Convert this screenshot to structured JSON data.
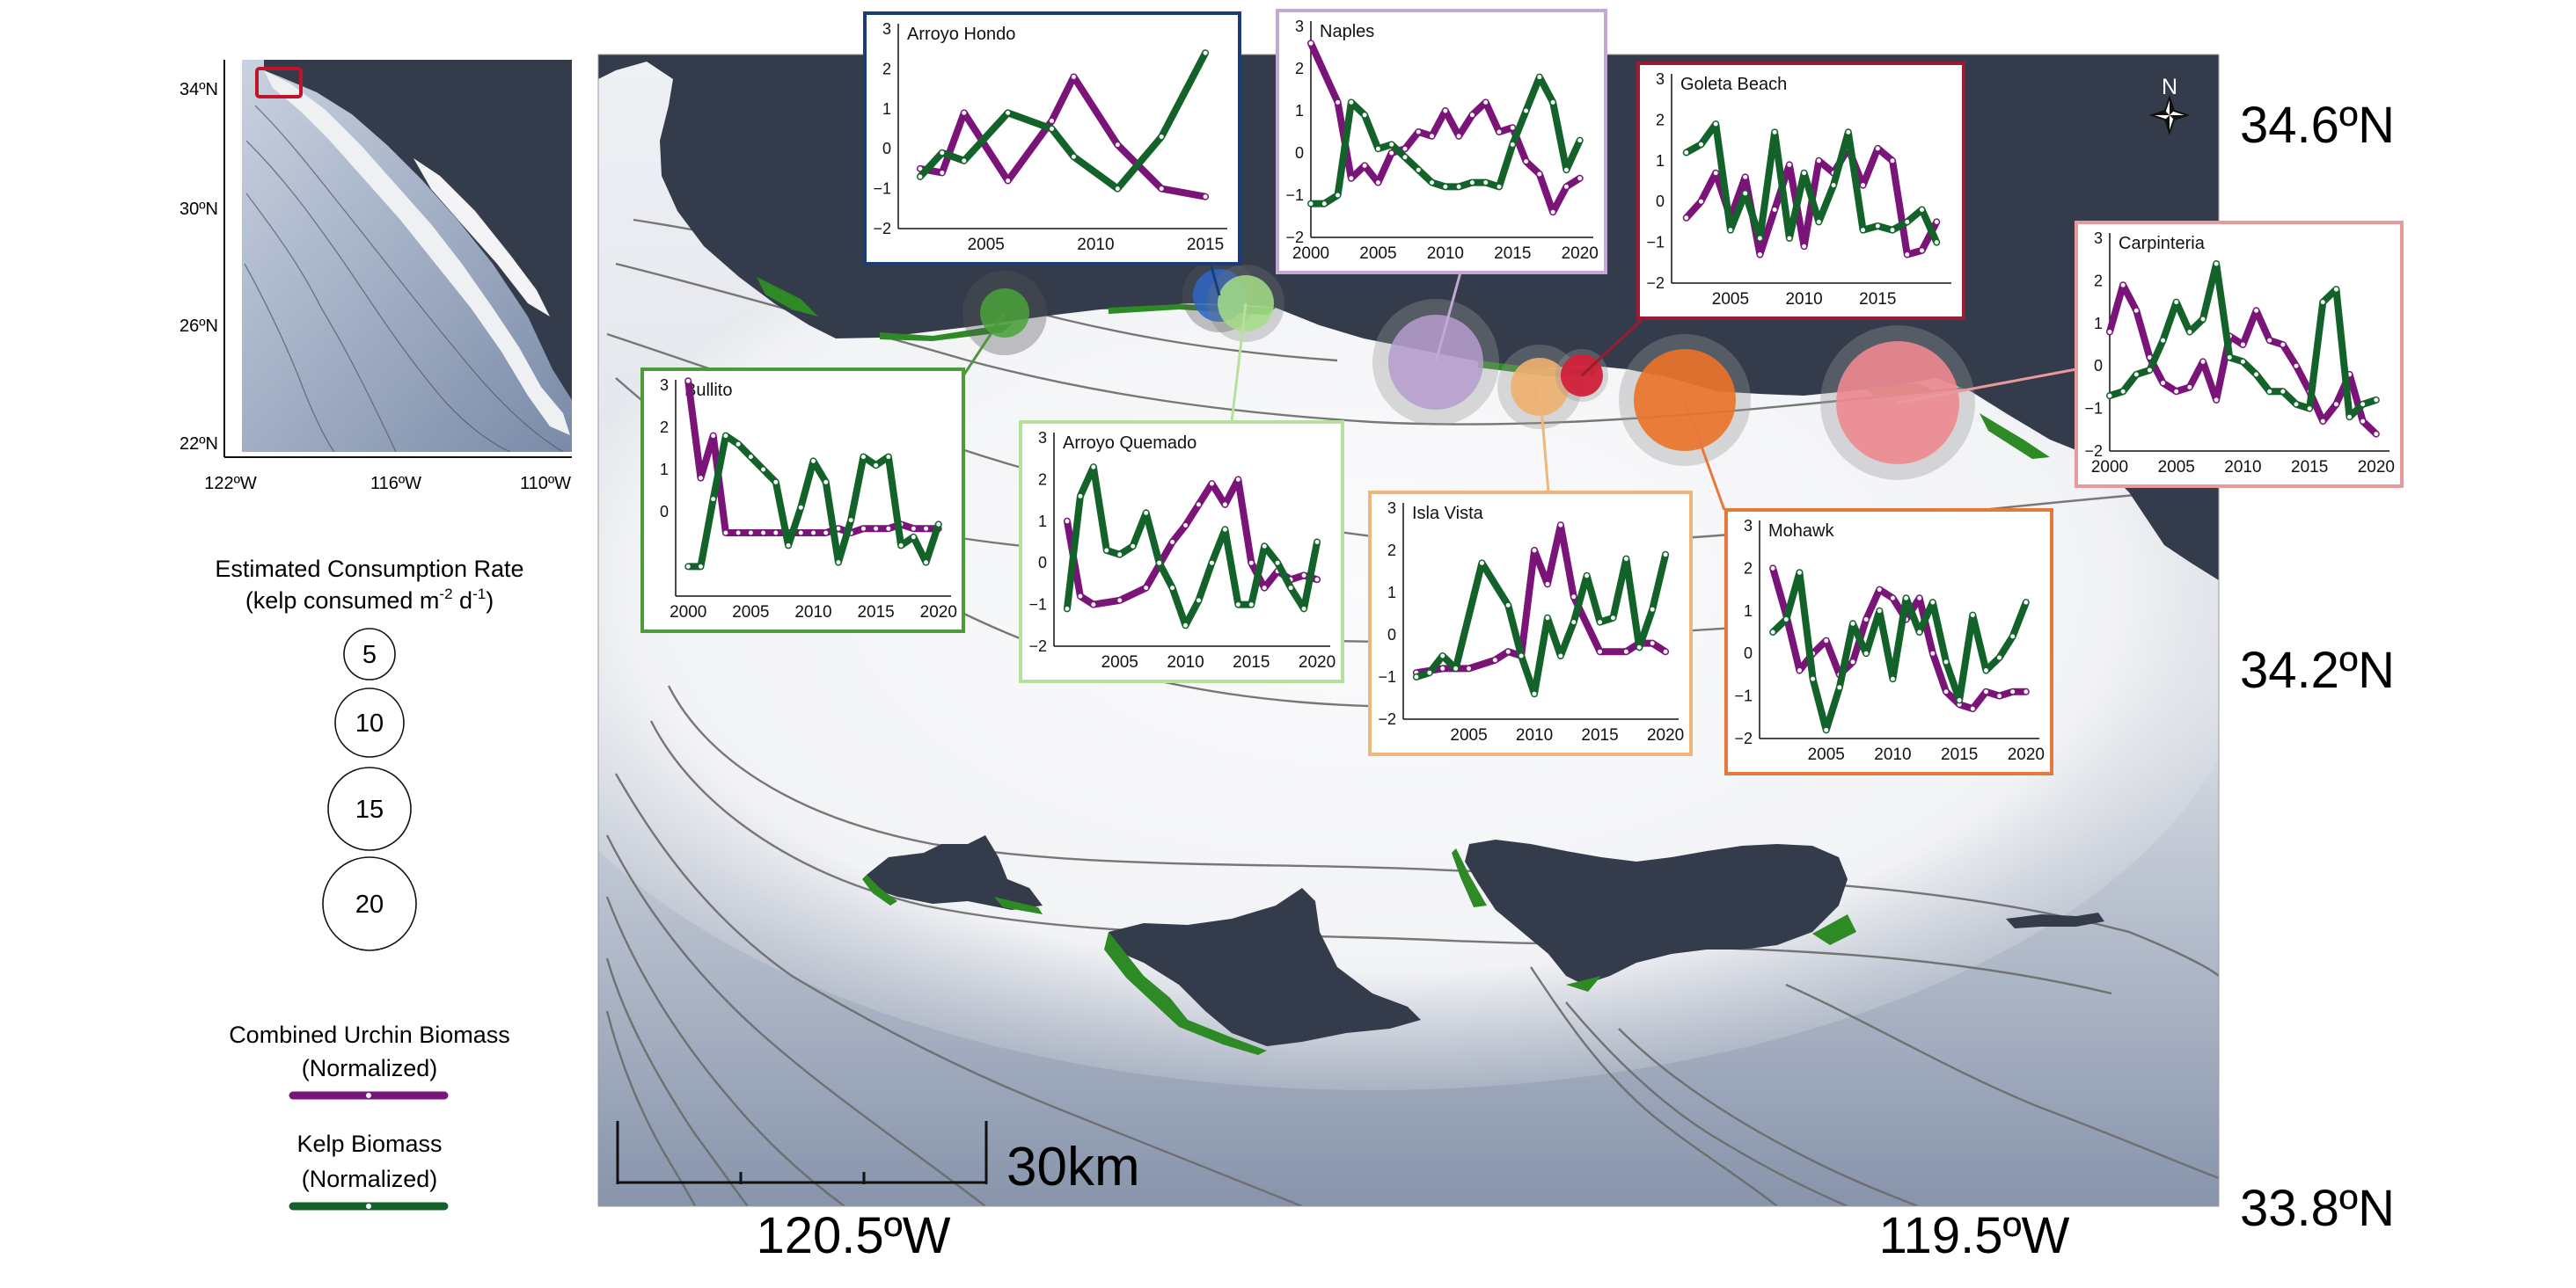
{
  "colors": {
    "land": "#343c4c",
    "urchin": "#7a1478",
    "kelp": "#12622a",
    "kelp_bed": "#2e8a24",
    "contour": "#6a6a6a"
  },
  "inset": {
    "lat_labels": [
      "34ºN",
      "30ºN",
      "26ºN",
      "22ºN"
    ],
    "lon_labels": [
      "122ºW",
      "116ºW",
      "110ºW"
    ]
  },
  "legend": {
    "consumption_title_line1": "Estimated Consumption Rate",
    "consumption_title_line2_a": "(kelp consumed m",
    "consumption_title_line2_sup1": "-2",
    "consumption_title_line2_b": " d",
    "consumption_title_line2_sup2": "-1",
    "consumption_title_line2_c": ")",
    "circle_values": [
      "5",
      "10",
      "15",
      "20"
    ],
    "urchin_label_line1": "Combined Urchin Biomass",
    "urchin_label_line2": "(Normalized)",
    "kelp_label_line1": "Kelp Biomass",
    "kelp_label_line2": "(Normalized)"
  },
  "map": {
    "lat_labels": [
      "34.6ºN",
      "34.2ºN",
      "33.8ºN"
    ],
    "lon_labels": [
      "120.5ºW",
      "119.5ºW"
    ],
    "scale_label": "30km",
    "north_label": "N"
  },
  "sites": [
    {
      "name": "Arroyo Hondo",
      "color": "#1a3d7a",
      "circle_color": "#2e66c4",
      "rate": 7
    },
    {
      "name": "Naples",
      "color": "#c3a7d4",
      "circle_color": "#b59ccc",
      "rate": 14
    },
    {
      "name": "Goleta Beach",
      "color": "#9c1b34",
      "circle_color": "#d2203a",
      "rate": 5
    },
    {
      "name": "Carpinteria",
      "color": "#e89a9c",
      "circle_color": "#ee8890",
      "rate": 20
    },
    {
      "name": "Bullito",
      "color": "#4d9a3b",
      "circle_color": "#4aa23a",
      "rate": 6
    },
    {
      "name": "Arroyo Quemado",
      "color": "#b6e09e",
      "circle_color": "#a5de86",
      "rate": 7
    },
    {
      "name": "Isla Vista",
      "color": "#eeb67a",
      "circle_color": "#f0b070",
      "rate": 8
    },
    {
      "name": "Mohawk",
      "color": "#e7783c",
      "circle_color": "#ec7228",
      "rate": 15
    }
  ],
  "chart_data": [
    {
      "type": "line",
      "title": "Arroyo Hondo",
      "ylim": [
        -2,
        3
      ],
      "xlim": [
        2001,
        2016
      ],
      "yticks": [
        "3",
        "2",
        "1",
        "0",
        "−1",
        "−2"
      ],
      "xticks": [
        "2005",
        "2010",
        "2015"
      ],
      "series": [
        {
          "name": "Combined Urchin Biomass (Normalized)",
          "x": [
            2002,
            2003,
            2004,
            2006,
            2008,
            2009,
            2011,
            2013,
            2015
          ],
          "values": [
            -0.5,
            -0.6,
            0.9,
            -0.8,
            0.7,
            1.8,
            0.1,
            -1.0,
            -1.2
          ]
        },
        {
          "name": "Kelp Biomass (Normalized)",
          "x": [
            2002,
            2003,
            2004,
            2006,
            2008,
            2009,
            2011,
            2013,
            2015
          ],
          "values": [
            -0.7,
            -0.1,
            -0.3,
            0.9,
            0.5,
            -0.2,
            -1.0,
            0.3,
            2.4
          ]
        }
      ]
    },
    {
      "type": "line",
      "title": "Naples",
      "ylim": [
        -2,
        3
      ],
      "xlim": [
        2000,
        2021
      ],
      "yticks": [
        "3",
        "2",
        "1",
        "0",
        "−1",
        "−2"
      ],
      "xticks": [
        "2000",
        "2005",
        "2010",
        "2015",
        "2020"
      ],
      "series": [
        {
          "name": "Combined Urchin Biomass (Normalized)",
          "x": [
            2000,
            2002,
            2003,
            2004,
            2005,
            2006,
            2007,
            2008,
            2009,
            2010,
            2011,
            2012,
            2013,
            2014,
            2015,
            2016,
            2017,
            2018,
            2019,
            2020
          ],
          "values": [
            2.6,
            1.2,
            -0.6,
            -0.3,
            -0.7,
            0.0,
            0.1,
            0.5,
            0.4,
            1.0,
            0.4,
            0.9,
            1.2,
            0.5,
            0.6,
            -0.2,
            -0.5,
            -1.4,
            -0.8,
            -0.6
          ]
        },
        {
          "name": "Kelp Biomass (Normalized)",
          "x": [
            2000,
            2001,
            2002,
            2003,
            2004,
            2005,
            2006,
            2007,
            2008,
            2009,
            2010,
            2011,
            2012,
            2013,
            2014,
            2015,
            2016,
            2017,
            2018,
            2019,
            2020
          ],
          "values": [
            -1.2,
            -1.2,
            -1.0,
            1.2,
            0.9,
            0.1,
            0.2,
            -0.1,
            -0.4,
            -0.7,
            -0.8,
            -0.8,
            -0.7,
            -0.7,
            -0.8,
            0.2,
            1.0,
            1.8,
            1.2,
            -0.4,
            0.3
          ]
        }
      ]
    },
    {
      "type": "line",
      "title": "Goleta Beach",
      "ylim": [
        -2,
        3
      ],
      "xlim": [
        2001,
        2020
      ],
      "yticks": [
        "3",
        "2",
        "1",
        "0",
        "−1",
        "−2"
      ],
      "xticks": [
        "2005",
        "2010",
        "2015"
      ],
      "series": [
        {
          "name": "Combined Urchin Biomass (Normalized)",
          "x": [
            2002,
            2003,
            2004,
            2005,
            2006,
            2007,
            2008,
            2009,
            2010,
            2011,
            2012,
            2013,
            2014,
            2015,
            2016,
            2017,
            2018,
            2019
          ],
          "values": [
            -0.4,
            0.0,
            0.7,
            -0.4,
            0.6,
            -1.3,
            -0.2,
            0.9,
            -1.1,
            1.0,
            0.7,
            1.3,
            0.4,
            1.3,
            1.0,
            -1.3,
            -1.2,
            -0.5
          ]
        },
        {
          "name": "Kelp Biomass (Normalized)",
          "x": [
            2002,
            2003,
            2004,
            2005,
            2006,
            2007,
            2008,
            2009,
            2010,
            2011,
            2012,
            2013,
            2014,
            2015,
            2016,
            2017,
            2018,
            2019
          ],
          "values": [
            1.2,
            1.4,
            1.9,
            -0.7,
            0.2,
            -0.9,
            1.7,
            -0.9,
            0.7,
            -0.5,
            0.4,
            1.7,
            -0.7,
            -0.6,
            -0.7,
            -0.5,
            -0.2,
            -1.0
          ]
        }
      ]
    },
    {
      "type": "line",
      "title": "Carpinteria",
      "ylim": [
        -2,
        3
      ],
      "xlim": [
        2000,
        2021
      ],
      "yticks": [
        "3",
        "2",
        "1",
        "0",
        "−1",
        "−2"
      ],
      "xticks": [
        "2000",
        "2005",
        "2010",
        "2015",
        "2020"
      ],
      "series": [
        {
          "name": "Combined Urchin Biomass (Normalized)",
          "x": [
            2000,
            2001,
            2002,
            2003,
            2004,
            2005,
            2006,
            2007,
            2008,
            2009,
            2010,
            2011,
            2012,
            2013,
            2014,
            2015,
            2016,
            2017,
            2018,
            2019,
            2020
          ],
          "values": [
            0.8,
            1.9,
            1.3,
            0.2,
            -0.4,
            -0.6,
            -0.5,
            0.1,
            -0.8,
            0.7,
            0.5,
            1.3,
            0.6,
            0.5,
            0.0,
            -0.6,
            -1.3,
            -0.9,
            -0.2,
            -1.3,
            -1.6
          ]
        },
        {
          "name": "Kelp Biomass (Normalized)",
          "x": [
            2000,
            2001,
            2002,
            2003,
            2004,
            2005,
            2006,
            2007,
            2008,
            2009,
            2010,
            2011,
            2012,
            2013,
            2014,
            2015,
            2016,
            2017,
            2018,
            2019,
            2020
          ],
          "values": [
            -0.7,
            -0.6,
            -0.2,
            -0.1,
            0.6,
            1.5,
            0.8,
            1.1,
            2.4,
            0.2,
            0.1,
            -0.2,
            -0.6,
            -0.6,
            -0.9,
            -1.0,
            1.5,
            1.8,
            -1.2,
            -0.9,
            -0.8
          ]
        }
      ]
    },
    {
      "type": "line",
      "title": "Bullito",
      "ylim": [
        -2,
        3
      ],
      "xlim": [
        1999,
        2021
      ],
      "yticks": [
        "3",
        "2",
        "1",
        "0"
      ],
      "xticks": [
        "2000",
        "2005",
        "2010",
        "2015",
        "2020"
      ],
      "series": [
        {
          "name": "Combined Urchin Biomass (Normalized)",
          "x": [
            2000,
            2001,
            2002,
            2003,
            2004,
            2005,
            2006,
            2007,
            2008,
            2009,
            2010,
            2011,
            2012,
            2013,
            2014,
            2015,
            2016,
            2017,
            2018,
            2019,
            2020
          ],
          "values": [
            3.1,
            0.8,
            1.8,
            -0.5,
            -0.5,
            -0.5,
            -0.5,
            -0.5,
            -0.5,
            -0.5,
            -0.5,
            -0.5,
            -0.4,
            -0.5,
            -0.4,
            -0.4,
            -0.4,
            -0.3,
            -0.4,
            -0.4,
            -0.4
          ]
        },
        {
          "name": "Kelp Biomass (Normalized)",
          "x": [
            2000,
            2001,
            2002,
            2003,
            2004,
            2005,
            2006,
            2007,
            2008,
            2009,
            2010,
            2011,
            2012,
            2013,
            2014,
            2015,
            2016,
            2017,
            2018,
            2019,
            2020
          ],
          "values": [
            -1.3,
            -1.3,
            0.3,
            1.8,
            1.6,
            1.3,
            1.0,
            0.7,
            -0.8,
            0.1,
            1.2,
            0.7,
            -1.2,
            -0.2,
            1.3,
            1.1,
            1.3,
            -0.8,
            -0.6,
            -1.2,
            -0.3
          ]
        }
      ]
    },
    {
      "type": "line",
      "title": "Arroyo Quemado",
      "ylim": [
        -2,
        3
      ],
      "xlim": [
        2000,
        2021
      ],
      "yticks": [
        "3",
        "2",
        "1",
        "0",
        "−1",
        "−2"
      ],
      "xticks": [
        "2005",
        "2010",
        "2015",
        "2020"
      ],
      "series": [
        {
          "name": "Combined Urchin Biomass (Normalized)",
          "x": [
            2001,
            2002,
            2003,
            2005,
            2007,
            2009,
            2010,
            2011,
            2012,
            2013,
            2014,
            2015,
            2016,
            2017,
            2018,
            2019,
            2020
          ],
          "values": [
            1.0,
            -0.8,
            -1.0,
            -0.9,
            -0.6,
            0.5,
            0.9,
            1.4,
            1.9,
            1.4,
            2.0,
            0.0,
            -0.6,
            -0.2,
            -0.4,
            -0.3,
            -0.4
          ]
        },
        {
          "name": "Kelp Biomass (Normalized)",
          "x": [
            2001,
            2002,
            2003,
            2004,
            2005,
            2006,
            2007,
            2008,
            2009,
            2010,
            2011,
            2012,
            2013,
            2014,
            2015,
            2016,
            2017,
            2018,
            2019,
            2020
          ],
          "values": [
            -1.1,
            1.6,
            2.3,
            0.3,
            0.2,
            0.4,
            1.2,
            0.0,
            -0.6,
            -1.5,
            -0.9,
            0.0,
            0.8,
            -1.0,
            -1.0,
            0.4,
            0.0,
            -0.6,
            -1.1,
            0.5
          ]
        }
      ]
    },
    {
      "type": "line",
      "title": "Isla Vista",
      "ylim": [
        -2,
        3
      ],
      "xlim": [
        2000,
        2021
      ],
      "yticks": [
        "3",
        "2",
        "1",
        "0",
        "−1",
        "−2"
      ],
      "xticks": [
        "2005",
        "2010",
        "2015",
        "2020"
      ],
      "series": [
        {
          "name": "Combined Urchin Biomass (Normalized)",
          "x": [
            2001,
            2003,
            2005,
            2007,
            2008,
            2009,
            2010,
            2011,
            2012,
            2013,
            2015,
            2017,
            2018,
            2019,
            2020
          ],
          "values": [
            -0.9,
            -0.8,
            -0.8,
            -0.6,
            -0.4,
            -0.5,
            2.0,
            1.2,
            2.6,
            0.9,
            -0.4,
            -0.4,
            -0.2,
            -0.2,
            -0.4
          ]
        },
        {
          "name": "Kelp Biomass (Normalized)",
          "x": [
            2001,
            2002,
            2003,
            2004,
            2006,
            2008,
            2009,
            2010,
            2011,
            2012,
            2013,
            2014,
            2015,
            2016,
            2017,
            2018,
            2019,
            2020
          ],
          "values": [
            -1.0,
            -0.9,
            -0.5,
            -0.8,
            1.7,
            0.7,
            -0.5,
            -1.4,
            0.4,
            -0.5,
            0.3,
            1.4,
            0.3,
            0.4,
            1.8,
            -0.3,
            0.6,
            1.9
          ]
        }
      ]
    },
    {
      "type": "line",
      "title": "Mohawk",
      "ylim": [
        -2,
        3
      ],
      "xlim": [
        2000,
        2021
      ],
      "yticks": [
        "3",
        "2",
        "1",
        "0",
        "−1",
        "−2"
      ],
      "xticks": [
        "2005",
        "2010",
        "2015",
        "2020"
      ],
      "series": [
        {
          "name": "Combined Urchin Biomass (Normalized)",
          "x": [
            2001,
            2002,
            2003,
            2004,
            2005,
            2006,
            2007,
            2008,
            2009,
            2010,
            2011,
            2012,
            2013,
            2014,
            2015,
            2016,
            2017,
            2018,
            2019,
            2020
          ],
          "values": [
            2.0,
            0.9,
            -0.4,
            0.0,
            0.3,
            -0.5,
            -0.2,
            0.8,
            1.5,
            1.3,
            0.8,
            1.3,
            0.0,
            -0.9,
            -1.2,
            -1.3,
            -0.9,
            -1.0,
            -0.9,
            -0.9
          ]
        },
        {
          "name": "Kelp Biomass (Normalized)",
          "x": [
            2001,
            2002,
            2003,
            2004,
            2005,
            2006,
            2007,
            2008,
            2009,
            2010,
            2011,
            2012,
            2013,
            2014,
            2015,
            2016,
            2017,
            2018,
            2019,
            2020
          ],
          "values": [
            0.5,
            0.8,
            1.9,
            -0.6,
            -1.8,
            -0.8,
            0.7,
            0.0,
            1.0,
            -0.6,
            1.3,
            0.5,
            1.2,
            -0.2,
            -1.1,
            0.9,
            -0.4,
            -0.1,
            0.4,
            1.2
          ]
        }
      ]
    }
  ]
}
